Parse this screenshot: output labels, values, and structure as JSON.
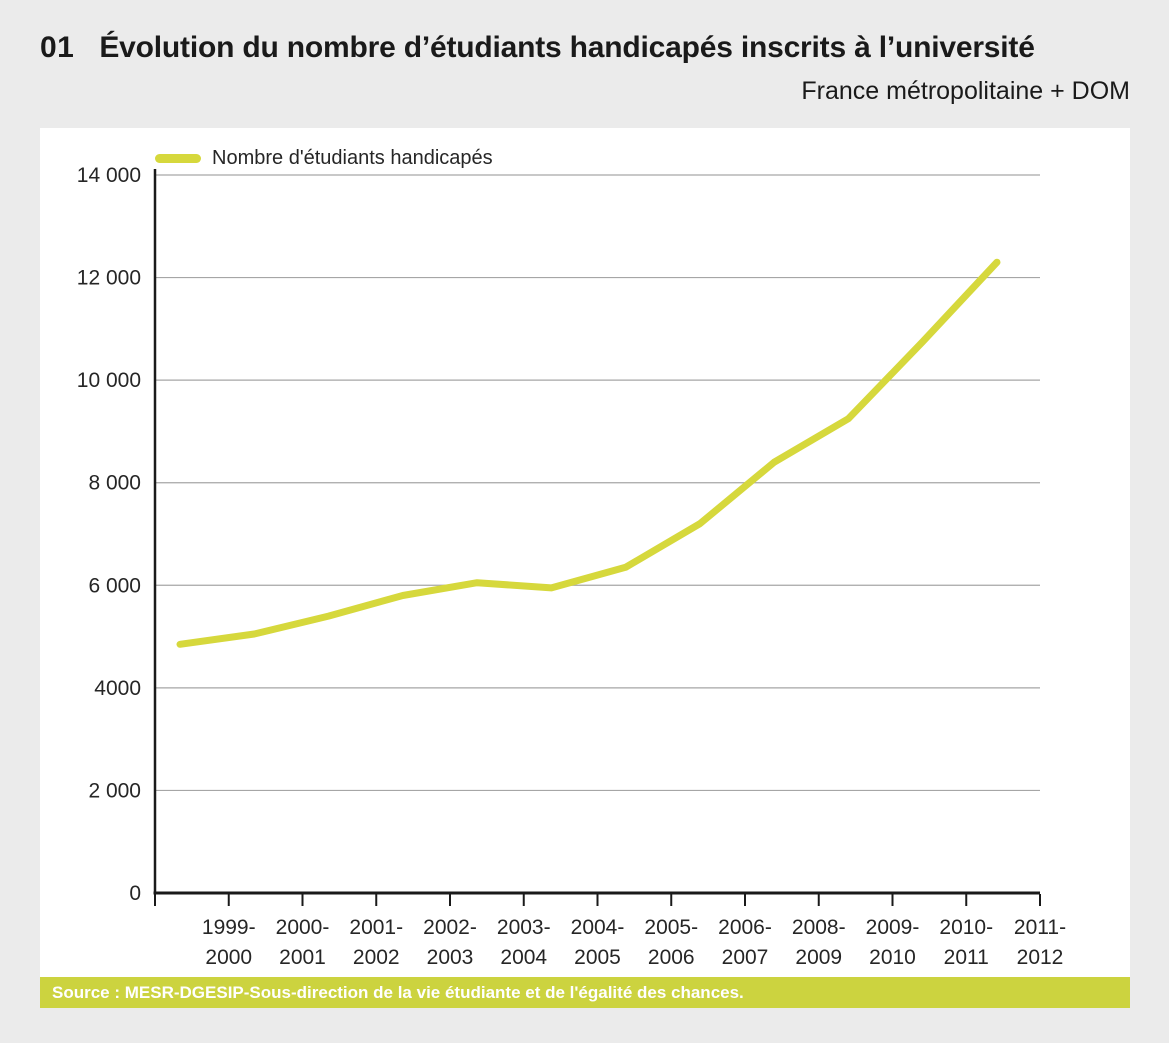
{
  "page": {
    "figure_number": "01",
    "title": "Évolution du nombre d’étudiants handicapés inscrits à l’université",
    "subtitle": "France métropolitaine + DOM",
    "source_text": "Source : MESR-DGESIP-Sous-direction de la vie étudiante et de l'égalité des chances."
  },
  "colors": {
    "accent_line": "#d6d83c",
    "source_bar_bg": "#ccd33f",
    "grid": "#a6a6a6",
    "axis": "#1a1a1a",
    "page_bg": "#ebebeb",
    "panel_bg": "#ffffff",
    "text": "#1a1a1a"
  },
  "chart_data": {
    "type": "line",
    "title": "Évolution du nombre d’étudiants handicapés inscrits à l’université",
    "subtitle": "France métropolitaine + DOM",
    "legend_position": "top-left",
    "grid": "horizontal",
    "categories": [
      "1999-2000",
      "2000-2001",
      "2001-2002",
      "2002-2003",
      "2003-2004",
      "2004-2005",
      "2005-2006",
      "2006-2007",
      "2008-2009",
      "2009-2010",
      "2010-2011",
      "2011-2012"
    ],
    "series": [
      {
        "name": "Nombre d'étudiants handicapés",
        "values": [
          4850,
          5050,
          5400,
          5800,
          6050,
          5950,
          6350,
          7200,
          8400,
          9250,
          10750,
          12300
        ]
      }
    ],
    "ylim": [
      0,
      14000
    ],
    "yticks": [
      {
        "value": 0,
        "label": "0"
      },
      {
        "value": 2000,
        "label": "2 000"
      },
      {
        "value": 4000,
        "label": "4000"
      },
      {
        "value": 6000,
        "label": "6 000"
      },
      {
        "value": 8000,
        "label": "8 000"
      },
      {
        "value": 10000,
        "label": "10 000"
      },
      {
        "value": 12000,
        "label": "12 000"
      },
      {
        "value": 14000,
        "label": "14 000"
      }
    ],
    "source": "Source : MESR-DGESIP-Sous-direction de la vie étudiante et de l'égalité des chances."
  }
}
